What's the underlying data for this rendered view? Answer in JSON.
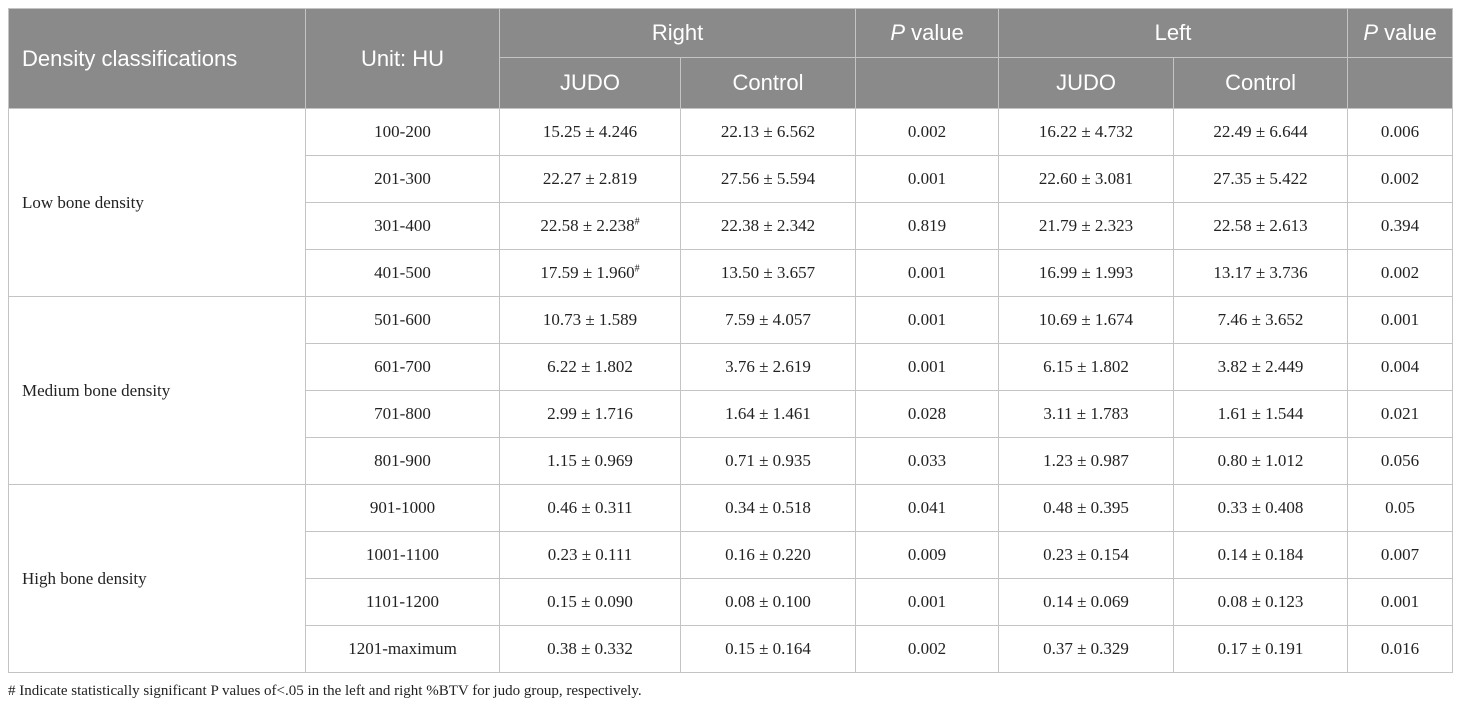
{
  "header": {
    "row1": [
      "Density classifications",
      "Unit: HU",
      "Right",
      {
        "italic": "P",
        "rest": " value"
      },
      "Left",
      {
        "italic": "P",
        "rest": " value"
      }
    ],
    "row2": [
      "JUDO",
      "Control",
      "JUDO",
      "Control"
    ]
  },
  "groups": [
    {
      "label": "Low bone density",
      "rows": [
        [
          "100-200",
          "15.25 ± 4.246",
          "22.13 ± 6.562",
          "0.002",
          "16.22 ± 4.732",
          "22.49 ± 6.644",
          "0.006"
        ],
        [
          "201-300",
          "22.27 ± 2.819",
          "27.56 ± 5.594",
          "0.001",
          "22.60 ± 3.081",
          "27.35 ± 5.422",
          "0.002"
        ],
        [
          "301-400",
          {
            "text": "22.58 ± 2.238",
            "sup": "#"
          },
          "22.38 ± 2.342",
          "0.819",
          "21.79 ± 2.323",
          "22.58 ± 2.613",
          "0.394"
        ],
        [
          "401-500",
          {
            "text": "17.59 ± 1.960",
            "sup": "#"
          },
          "13.50 ± 3.657",
          "0.001",
          "16.99 ± 1.993",
          "13.17 ± 3.736",
          "0.002"
        ]
      ]
    },
    {
      "label": "Medium bone density",
      "rows": [
        [
          "501-600",
          "10.73 ± 1.589",
          "7.59 ± 4.057",
          "0.001",
          "10.69 ± 1.674",
          "7.46 ± 3.652",
          "0.001"
        ],
        [
          "601-700",
          "6.22 ± 1.802",
          "3.76 ± 2.619",
          "0.001",
          "6.15 ± 1.802",
          "3.82 ± 2.449",
          "0.004"
        ],
        [
          "701-800",
          "2.99 ± 1.716",
          "1.64 ± 1.461",
          "0.028",
          "3.11 ± 1.783",
          "1.61 ± 1.544",
          "0.021"
        ],
        [
          "801-900",
          "1.15 ± 0.969",
          "0.71 ± 0.935",
          "0.033",
          "1.23 ± 0.987",
          "0.80 ± 1.012",
          "0.056"
        ]
      ]
    },
    {
      "label": "High bone density",
      "rows": [
        [
          "901-1000",
          "0.46 ± 0.311",
          "0.34 ± 0.518",
          "0.041",
          "0.48 ± 0.395",
          "0.33 ± 0.408",
          "0.05"
        ],
        [
          "1001-1100",
          "0.23 ± 0.111",
          "0.16 ± 0.220",
          "0.009",
          "0.23 ± 0.154",
          "0.14 ± 0.184",
          "0.007"
        ],
        [
          "1101-1200",
          "0.15 ± 0.090",
          "0.08 ± 0.100",
          "0.001",
          "0.14 ± 0.069",
          "0.08 ± 0.123",
          "0.001"
        ],
        [
          "1201-maximum",
          "0.38 ± 0.332",
          "0.15 ± 0.164",
          "0.002",
          "0.37 ± 0.329",
          "0.17 ± 0.191",
          "0.016"
        ]
      ]
    }
  ],
  "footnote": "# Indicate statistically significant P values of<.05 in the left and right %BTV for judo group, respectively."
}
